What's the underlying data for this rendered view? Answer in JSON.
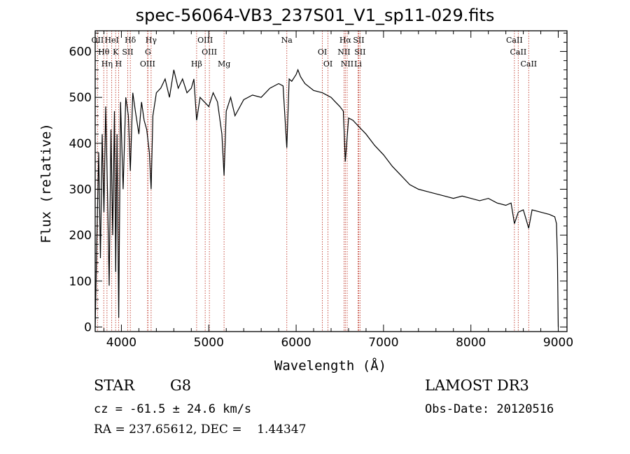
{
  "chart_data": {
    "type": "line",
    "title": "spec-56064-VB3_237S01_V1_sp11-029.fits",
    "xlabel": "Wavelength (Å)",
    "ylabel": "Flux (relative)",
    "xlim": [
      3700,
      9100
    ],
    "ylim": [
      -10,
      645
    ],
    "x_ticks": [
      4000,
      5000,
      6000,
      7000,
      8000,
      9000
    ],
    "y_ticks": [
      0,
      100,
      200,
      300,
      400,
      500,
      600
    ],
    "series": [
      {
        "name": "spectrum",
        "x": [
          3700,
          3720,
          3740,
          3760,
          3780,
          3800,
          3820,
          3840,
          3860,
          3880,
          3900,
          3920,
          3935,
          3950,
          3969,
          3990,
          4020,
          4050,
          4080,
          4102,
          4130,
          4160,
          4200,
          4230,
          4260,
          4290,
          4320,
          4340,
          4360,
          4400,
          4450,
          4500,
          4550,
          4600,
          4650,
          4700,
          4750,
          4800,
          4830,
          4861,
          4900,
          4950,
          5000,
          5050,
          5100,
          5150,
          5175,
          5200,
          5250,
          5300,
          5400,
          5500,
          5600,
          5700,
          5800,
          5850,
          5893,
          5920,
          5950,
          6000,
          6020,
          6050,
          6100,
          6200,
          6300,
          6400,
          6450,
          6500,
          6540,
          6563,
          6600,
          6650,
          6700,
          6800,
          6900,
          7000,
          7100,
          7200,
          7300,
          7400,
          7500,
          7600,
          7700,
          7800,
          7900,
          8000,
          8100,
          8200,
          8300,
          8400,
          8460,
          8498,
          8542,
          8600,
          8662,
          8700,
          8800,
          8900,
          8960,
          8980,
          8990,
          9000
        ],
        "y": [
          0,
          200,
          380,
          150,
          420,
          250,
          480,
          300,
          90,
          430,
          200,
          470,
          120,
          420,
          20,
          490,
          300,
          500,
          460,
          340,
          510,
          470,
          420,
          490,
          450,
          430,
          380,
          300,
          460,
          510,
          520,
          540,
          500,
          560,
          520,
          540,
          510,
          520,
          540,
          450,
          500,
          490,
          480,
          510,
          490,
          420,
          330,
          470,
          500,
          460,
          495,
          505,
          500,
          520,
          530,
          525,
          390,
          540,
          535,
          550,
          560,
          545,
          530,
          515,
          510,
          500,
          490,
          480,
          470,
          360,
          455,
          450,
          440,
          420,
          395,
          375,
          350,
          330,
          310,
          300,
          295,
          290,
          285,
          280,
          285,
          280,
          275,
          280,
          270,
          265,
          270,
          225,
          250,
          255,
          215,
          255,
          250,
          245,
          240,
          225,
          150,
          0
        ]
      }
    ],
    "line_markers": [
      {
        "name": "OII",
        "x": 3727
      },
      {
        "name": "Hθ",
        "x": 3798
      },
      {
        "name": "Hη",
        "x": 3835
      },
      {
        "name": "HeI",
        "x": 3889
      },
      {
        "name": "K",
        "x": 3934
      },
      {
        "name": "H",
        "x": 3968
      },
      {
        "name": "Hδ",
        "x": 4102
      },
      {
        "name": "SII",
        "x": 4072
      },
      {
        "name": "OIII",
        "x": 4300
      },
      {
        "name": "Hγ",
        "x": 4340
      },
      {
        "name": "G",
        "x": 4304
      },
      {
        "name": "Hβ",
        "x": 4861
      },
      {
        "name": "OIII",
        "x": 4959
      },
      {
        "name": "OIII",
        "x": 5007
      },
      {
        "name": "Mg",
        "x": 5175
      },
      {
        "name": "Na",
        "x": 5893
      },
      {
        "name": "OI",
        "x": 6300
      },
      {
        "name": "OI",
        "x": 6364
      },
      {
        "name": "Hα",
        "x": 6563
      },
      {
        "name": "NII",
        "x": 6548
      },
      {
        "name": "NII",
        "x": 6584
      },
      {
        "name": "SII",
        "x": 6716
      },
      {
        "name": "SII",
        "x": 6731
      },
      {
        "name": "Li",
        "x": 6708
      },
      {
        "name": "CaII",
        "x": 8498
      },
      {
        "name": "CaII",
        "x": 8542
      },
      {
        "name": "CaII",
        "x": 8662
      }
    ]
  },
  "info": {
    "object_class": "STAR",
    "subclass": "G8",
    "survey": "LAMOST DR3",
    "cz": "cz = -61.5 ± 24.6 km/s",
    "obs_date": "Obs-Date: 20120516",
    "coords": "RA = 237.65612, DEC =    1.44347"
  }
}
